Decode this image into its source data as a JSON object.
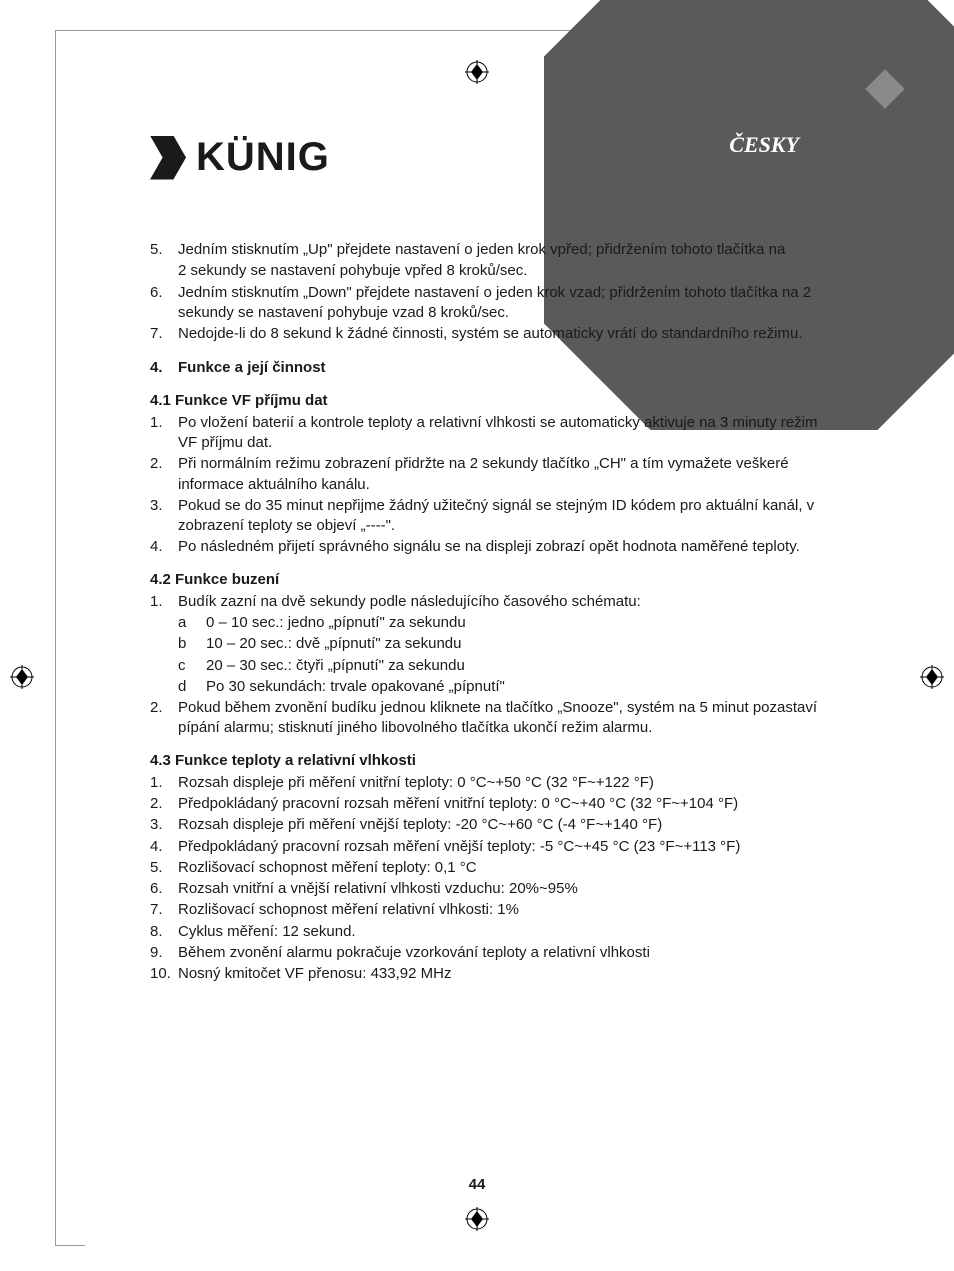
{
  "language_label": "ČESKY",
  "logo_text": "KÜNIG",
  "page_number": "44",
  "colors": {
    "banner": "#5a5a5a",
    "banner_notch": "#8a8a8a",
    "text": "#1a1a1a",
    "frame": "#999999",
    "background": "#ffffff"
  },
  "items_top": [
    {
      "n": "5.",
      "t": "Jedním stisknutím „Up\" přejdete nastavení o jeden krok vpřed; přidržením tohoto tlačítka na",
      "t2": "2 sekundy se nastavení pohybuje vpřed 8 kroků/sec."
    },
    {
      "n": "6.",
      "t": "Jedním stisknutím „Down\" přejdete nastavení o jeden krok vzad; přidržením tohoto tlačítka na 2 sekundy se nastavení pohybuje vzad 8 kroků/sec."
    },
    {
      "n": "7.",
      "t": "Nedojde-li do 8 sekund k žádné činnosti, systém se automaticky vrátí do standardního režimu."
    }
  ],
  "heading4": {
    "n": "4.",
    "t": "Funkce a její činnost"
  },
  "sub41": "4.1 Funkce VF příjmu dat",
  "items41": [
    {
      "n": "1.",
      "t": "Po vložení baterií a kontrole teploty a relativní vlhkosti se automaticky aktivuje na 3 minuty režim VF příjmu dat."
    },
    {
      "n": "2.",
      "t": "Při normálním režimu zobrazení přidržte na 2 sekundy tlačítko „CH\" a tím vymažete veškeré informace aktuálního kanálu."
    },
    {
      "n": "3.",
      "t": "Pokud se do 35 minut nepřijme žádný užitečný signál se stejným ID kódem pro aktuální kanál, v zobrazení teploty se objeví „----\"."
    },
    {
      "n": "4.",
      "t": "Po následném přijetí správného signálu se na displeji zobrazí opět hodnota naměřené teploty."
    }
  ],
  "sub42": "4.2 Funkce buzení",
  "items42": [
    {
      "n": "1.",
      "t": "Budík zazní na dvě sekundy podle následujícího časového schématu:"
    }
  ],
  "sub42_letters": [
    {
      "l": "a",
      "t": "0 – 10 sec.: jedno „pípnutí\" za sekundu"
    },
    {
      "l": "b",
      "t": "10 – 20 sec.: dvě „pípnutí\" za sekundu"
    },
    {
      "l": "c",
      "t": "20 – 30 sec.: čtyři „pípnutí\" za sekundu"
    },
    {
      "l": "d",
      "t": "Po 30 sekundách: trvale opakované „pípnutí\""
    }
  ],
  "items42b": [
    {
      "n": "2.",
      "t": "Pokud během zvonění budíku jednou kliknete na tlačítko „Snooze\", systém na 5 minut pozastaví pípání alarmu; stisknutí jiného libovolného tlačítka ukončí režim alarmu."
    }
  ],
  "sub43": "4.3 Funkce teploty a relativní vlhkosti",
  "items43": [
    {
      "n": "1.",
      "t": "Rozsah displeje při měření vnitřní teploty: 0 °C~+50 °C (32 °F~+122 °F)"
    },
    {
      "n": "2.",
      "t": "Předpokládaný pracovní rozsah měření vnitřní teploty: 0 °C~+40 °C (32 °F~+104 °F)"
    },
    {
      "n": "3.",
      "t": "Rozsah displeje při měření vnější teploty: -20 °C~+60 °C (-4 °F~+140 °F)"
    },
    {
      "n": "4.",
      "t": "Předpokládaný pracovní rozsah měření vnější teploty: -5 °C~+45 °C (23 °F~+113 °F)"
    },
    {
      "n": "5.",
      "t": "Rozlišovací schopnost měření teploty: 0,1 °C"
    },
    {
      "n": "6.",
      "t": "Rozsah vnitřní a vnější relativní vlhkosti vzduchu: 20%~95%"
    },
    {
      "n": "7.",
      "t": "Rozlišovací schopnost měření relativní vlhkosti: 1%"
    },
    {
      "n": "8.",
      "t": "Cyklus měření: 12 sekund."
    },
    {
      "n": "9.",
      "t": "Během zvonění alarmu pokračuje vzorkování teploty a relativní vlhkosti"
    },
    {
      "n": "10.",
      "t": "Nosný kmitočet VF přenosu: 433,92 MHz"
    }
  ]
}
